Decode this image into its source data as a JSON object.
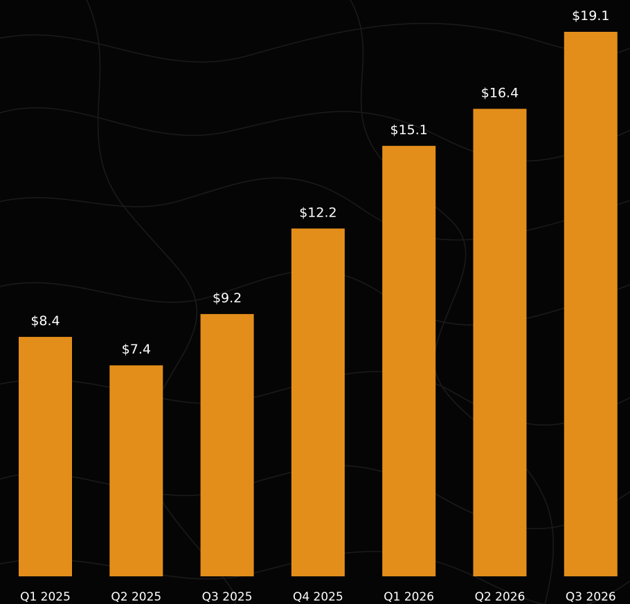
{
  "chart_data": {
    "type": "bar",
    "title": "",
    "xlabel": "",
    "ylabel": "",
    "categories": [
      "Q1 2025",
      "Q2 2025",
      "Q3 2025",
      "Q4 2025",
      "Q1 2026",
      "Q2 2026",
      "Q3 2026"
    ],
    "values": [
      8.4,
      7.4,
      9.2,
      12.2,
      15.1,
      16.4,
      19.1
    ],
    "value_labels": [
      "$8.4",
      "$7.4",
      "$9.2",
      "$12.2",
      "$15.1",
      "$16.4",
      "$19.1"
    ],
    "ylim": [
      0,
      19.1
    ],
    "grid": false,
    "legend": "none",
    "colors": {
      "bar": "#E38E1B",
      "background": "#050505",
      "text": "#FFFFFF"
    }
  }
}
